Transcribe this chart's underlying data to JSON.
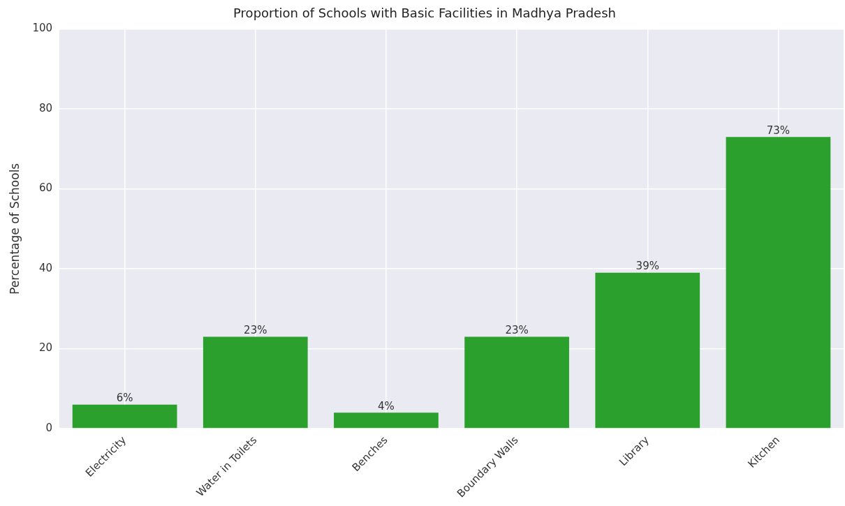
{
  "chart_data": {
    "type": "bar",
    "title": "Proportion of Schools with Basic Facilities in Madhya Pradesh",
    "ylabel": "Percentage of Schools",
    "categories": [
      "Electricity",
      "Water in Toilets",
      "Benches",
      "Boundary Walls",
      "Library",
      "Kitchen"
    ],
    "values": [
      6,
      23,
      4,
      23,
      39,
      73
    ],
    "color": "#2ca02c",
    "value_labels": [
      "6%",
      "23%",
      "4%",
      "23%",
      "39%",
      "73%"
    ],
    "ylim": [
      0,
      100
    ],
    "yticks": [
      0,
      20,
      40,
      60,
      80,
      100
    ],
    "grid": true
  }
}
